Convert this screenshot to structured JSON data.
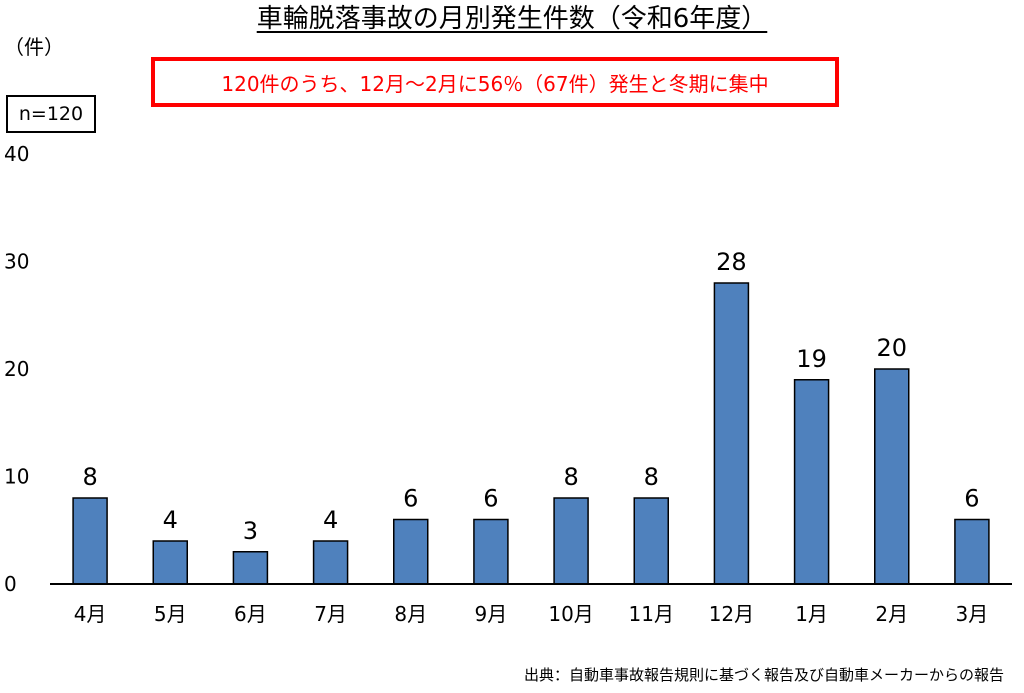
{
  "title": "車輪脱落事故の月別発生件数（令和6年度）",
  "unit_label": "（件）",
  "n_label": "n=120",
  "callout": "120件のうち、12月～2月に56％（67件）発生と冬期に集中",
  "source_note": "出典：自動車事故報告規則に基づく報告及び自動車メーカーからの報告",
  "colors": {
    "bar": "#4f81bd",
    "bar_border": "#000000",
    "callout": "#ff0000"
  },
  "chart_data": {
    "type": "bar",
    "title": "車輪脱落事故の月別発生件数（令和6年度）",
    "xlabel": "",
    "ylabel": "（件）",
    "categories": [
      "4月",
      "5月",
      "6月",
      "7月",
      "8月",
      "9月",
      "10月",
      "11月",
      "12月",
      "1月",
      "2月",
      "3月"
    ],
    "values": [
      8,
      4,
      3,
      4,
      6,
      6,
      8,
      8,
      28,
      19,
      20,
      6
    ],
    "ylim": [
      0,
      40
    ],
    "yticks": [
      0,
      10,
      20,
      30,
      40
    ],
    "grid": false,
    "data_labels": true
  }
}
